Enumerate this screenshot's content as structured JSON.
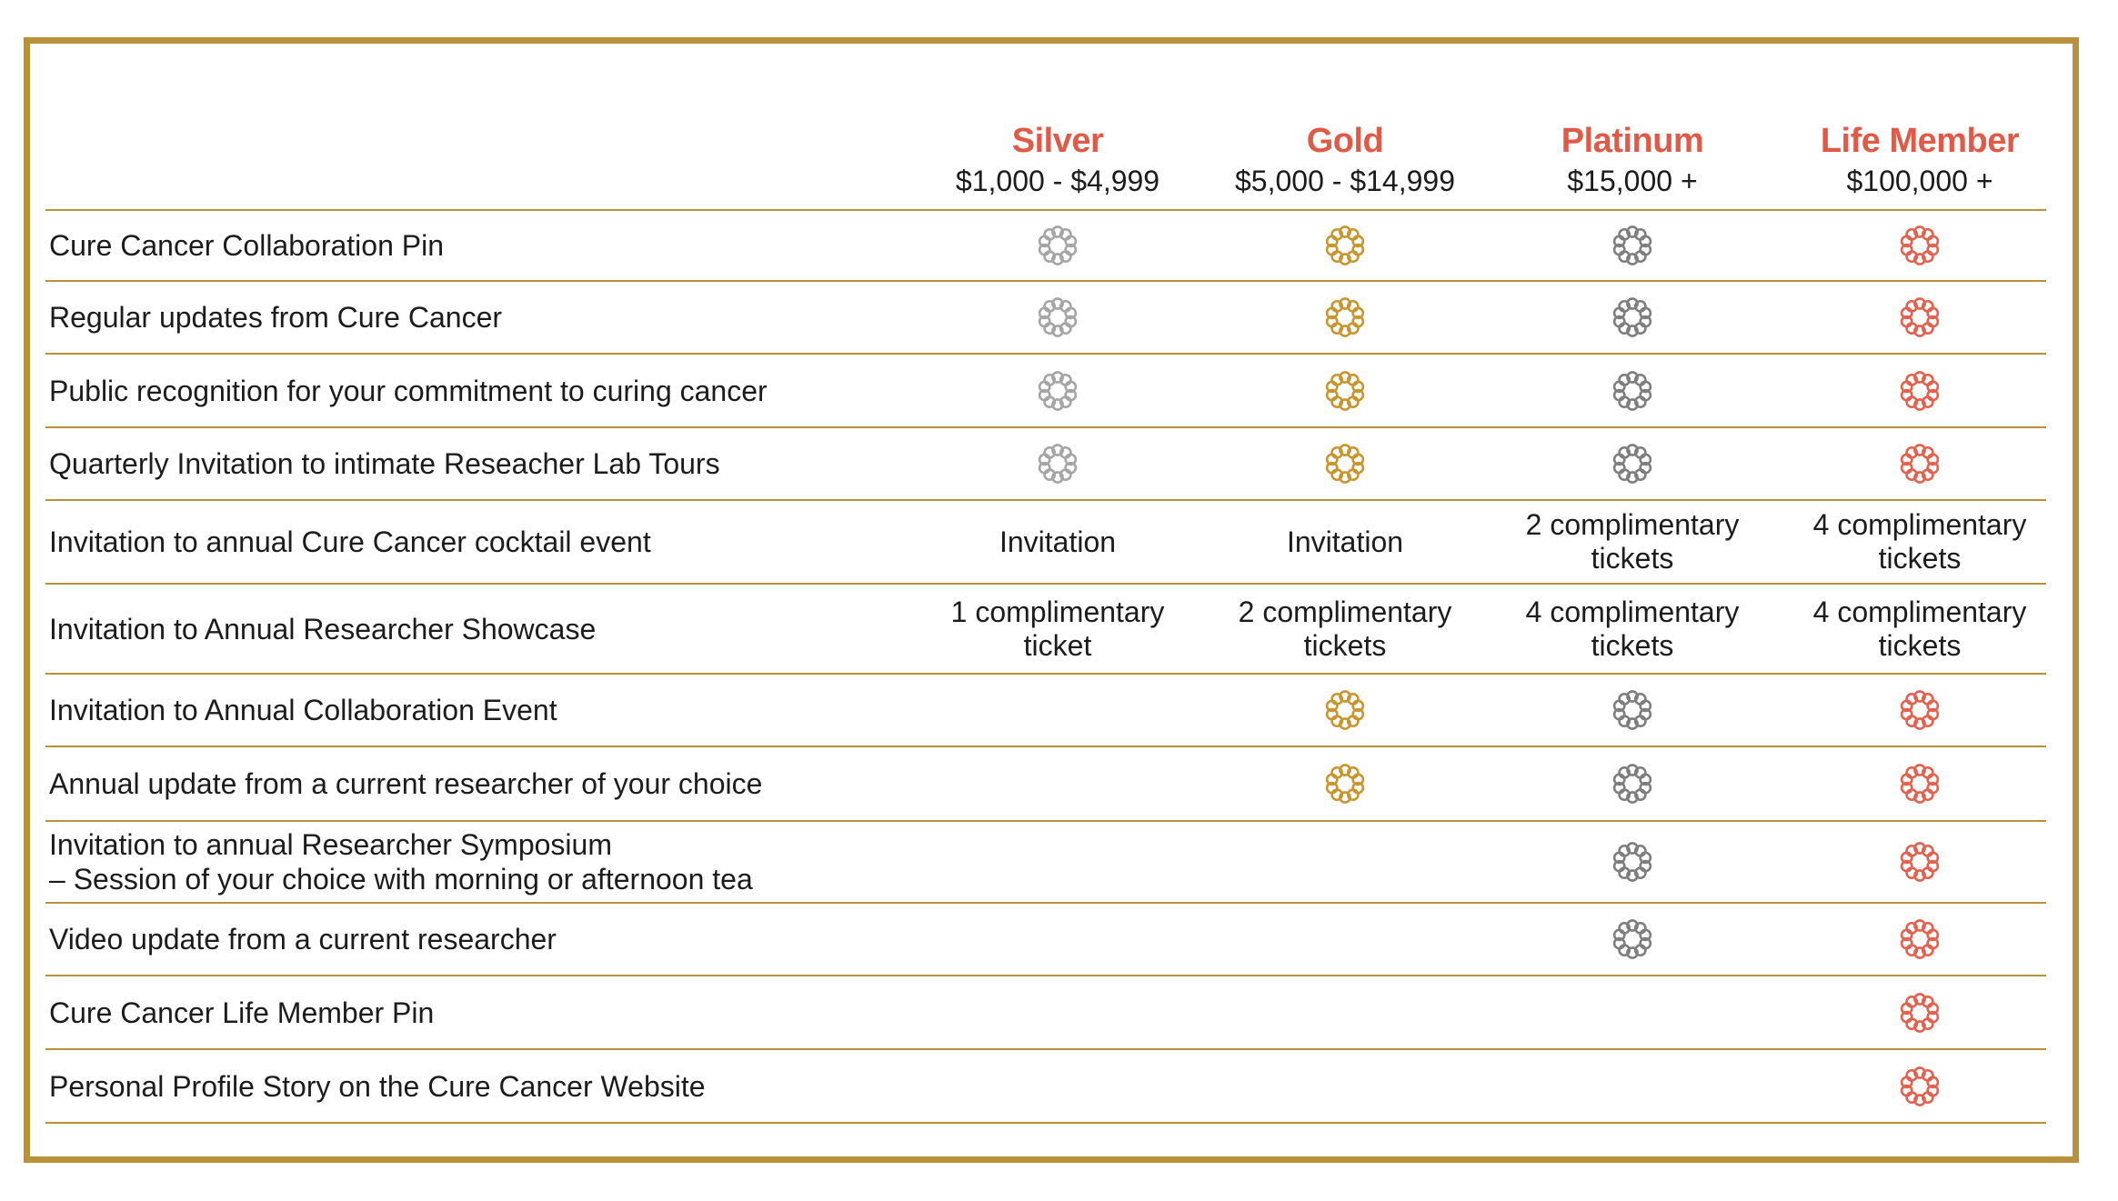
{
  "tiers": [
    {
      "name": "Silver",
      "range": "$1,000 - $4,999",
      "pin_color": "#a5a5a5"
    },
    {
      "name": "Gold",
      "range": "$5,000 - $14,999",
      "pin_color": "#c8962f"
    },
    {
      "name": "Platinum",
      "range": "$15,000 +",
      "pin_color": "#7e7e7e"
    },
    {
      "name": "Life Member",
      "range": "$100,000 +",
      "pin_color": "#e4604f"
    }
  ],
  "colors": {
    "border": "#b8923a",
    "tier_name": "#e05a48"
  },
  "rows": [
    {
      "label": "Cure Cancer Collaboration Pin",
      "cells": [
        "pin",
        "pin",
        "pin",
        "pin"
      ]
    },
    {
      "label": "Regular updates from Cure Cancer",
      "cells": [
        "pin",
        "pin",
        "pin",
        "pin"
      ]
    },
    {
      "label": "Public recognition for your commitment to curing cancer",
      "cells": [
        "pin",
        "pin",
        "pin",
        "pin"
      ]
    },
    {
      "label": "Quarterly Invitation to intimate Reseacher Lab Tours",
      "cells": [
        "pin",
        "pin",
        "pin",
        "pin"
      ]
    },
    {
      "label": "Invitation to annual Cure Cancer cocktail event",
      "cells": [
        "Invitation",
        "Invitation",
        "2 complimentary tickets",
        "4 complimentary tickets"
      ]
    },
    {
      "label": "Invitation to Annual Researcher Showcase",
      "cells": [
        "1 complimentary ticket",
        "2 complimentary tickets",
        "4 complimentary tickets",
        "4 complimentary tickets"
      ]
    },
    {
      "label": "Invitation to Annual Collaboration Event",
      "cells": [
        "",
        "pin",
        "pin",
        "pin"
      ]
    },
    {
      "label": "Annual update from a current researcher of your choice",
      "cells": [
        "",
        "pin",
        "pin",
        "pin"
      ]
    },
    {
      "label": "Invitation to annual Researcher Symposium\n– Session of your choice with morning or afternoon tea",
      "cells": [
        "",
        "",
        "pin",
        "pin"
      ]
    },
    {
      "label": "Video update from a current researcher",
      "cells": [
        "",
        "",
        "pin",
        "pin"
      ]
    },
    {
      "label": "Cure Cancer Life Member Pin",
      "cells": [
        "",
        "",
        "",
        "pin"
      ]
    },
    {
      "label": "Personal Profile Story on the Cure Cancer Website",
      "cells": [
        "",
        "",
        "",
        "pin"
      ]
    }
  ]
}
